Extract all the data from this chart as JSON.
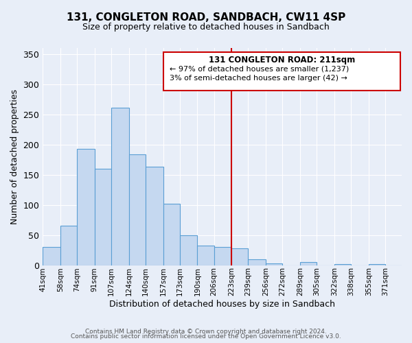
{
  "title": "131, CONGLETON ROAD, SANDBACH, CW11 4SP",
  "subtitle": "Size of property relative to detached houses in Sandbach",
  "xlabel": "Distribution of detached houses by size in Sandbach",
  "ylabel": "Number of detached properties",
  "bin_labels": [
    "41sqm",
    "58sqm",
    "74sqm",
    "91sqm",
    "107sqm",
    "124sqm",
    "140sqm",
    "157sqm",
    "173sqm",
    "190sqm",
    "206sqm",
    "223sqm",
    "239sqm",
    "256sqm",
    "272sqm",
    "289sqm",
    "305sqm",
    "322sqm",
    "338sqm",
    "355sqm",
    "371sqm"
  ],
  "bar_heights": [
    30,
    65,
    193,
    160,
    261,
    184,
    163,
    102,
    50,
    33,
    30,
    28,
    10,
    3,
    0,
    5,
    0,
    2,
    0,
    2,
    0
  ],
  "bar_color": "#c5d8f0",
  "bar_edge_color": "#5a9fd4",
  "property_line_x": 223,
  "annotation_label": "131 CONGLETON ROAD: 211sqm",
  "annotation_smaller": "← 97% of detached houses are smaller (1,237)",
  "annotation_larger": "3% of semi-detached houses are larger (42) →",
  "box_edge_color": "#cc0000",
  "line_color": "#cc0000",
  "ylim": [
    0,
    360
  ],
  "yticks": [
    0,
    50,
    100,
    150,
    200,
    250,
    300,
    350
  ],
  "footer1": "Contains HM Land Registry data © Crown copyright and database right 2024.",
  "footer2": "Contains public sector information licensed under the Open Government Licence v3.0.",
  "background_color": "#e8eef8",
  "plot_background": "#e8eef8",
  "title_fontsize": 11,
  "subtitle_fontsize": 9,
  "ylabel_fontsize": 9,
  "xlabel_fontsize": 9
}
